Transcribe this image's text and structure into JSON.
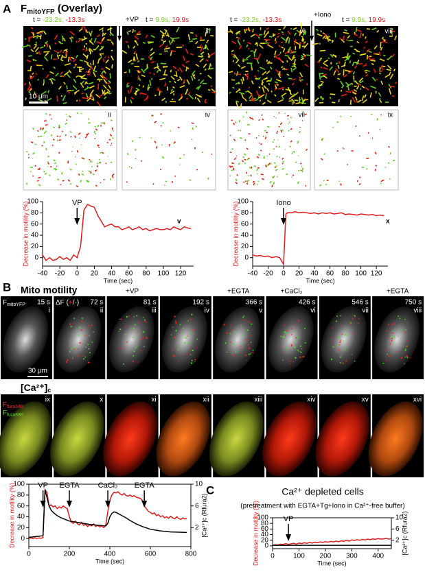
{
  "figure": {
    "panel_a": {
      "label": "A",
      "title": [
        "F",
        "mitoYFP",
        " (Overlay)"
      ],
      "time_labels": [
        [
          "t = ",
          "-23.2s, ",
          "-13.3s"
        ],
        [
          "t = ",
          "9.9s, ",
          "19.9s"
        ],
        [
          "t = ",
          "-23.2s, ",
          "-13.3s"
        ],
        [
          "t = ",
          "9.9s, ",
          "19.9s"
        ]
      ],
      "treatments": [
        "+VP",
        "+Iono"
      ],
      "image_labels": [
        "i",
        "iii",
        "vi",
        "viii",
        "ii",
        "iv",
        "vii",
        "ix"
      ],
      "scale": "10 μm",
      "chart_labels": [
        "v",
        "x"
      ]
    },
    "panel_b": {
      "label": "B",
      "title": "Mito motility",
      "treatments": [
        "+VP",
        "+EGTA",
        "+CaCl₂",
        "+EGTA"
      ],
      "first_image": [
        "F",
        "mitoYFP"
      ],
      "second_image": [
        "ΔF (",
        "+",
        "/",
        "-",
        ")"
      ],
      "times": [
        "15 s",
        "72 s",
        "81 s",
        "192 s",
        "366 s",
        "426 s",
        "546 s",
        "750 s"
      ],
      "labels": [
        "i",
        "ii",
        "iii",
        "iv",
        "v",
        "vi",
        "vii",
        "viii"
      ],
      "scale": "30 μm",
      "ca_title": [
        "[Ca²⁺]",
        "c"
      ],
      "fura": [
        "F",
        "fura340",
        "F",
        "fura380"
      ],
      "labels2": [
        "ix",
        "x",
        "xi",
        "xii",
        "xiii",
        "xiv",
        "xv",
        "xvi"
      ]
    },
    "panel_c": {
      "label": "C"
    }
  },
  "chart_data": [
    {
      "type": "line",
      "xlabel": "Time (sec)",
      "ylabel": "Decrease in motility (%)",
      "xlim": [
        -40,
        135
      ],
      "ylim": [
        -15,
        100
      ],
      "xticks": [
        -40,
        -20,
        0,
        20,
        40,
        60,
        80,
        100,
        120
      ],
      "yticks": [
        0,
        20,
        40,
        60,
        80,
        100
      ],
      "annotations": [
        {
          "text": "VP",
          "x": 0
        }
      ],
      "series": [
        {
          "color": "#e31a1c",
          "x": [
            -40,
            -36,
            -32,
            -28,
            -24,
            -20,
            -16,
            -12,
            -8,
            -4,
            0,
            4,
            8,
            12,
            16,
            20,
            24,
            28,
            32,
            36,
            40,
            44,
            48,
            52,
            56,
            60,
            64,
            68,
            72,
            76,
            80,
            84,
            88,
            92,
            96,
            100,
            104,
            108,
            112,
            116,
            120,
            124,
            128,
            132
          ],
          "values": [
            5,
            -5,
            0,
            -5,
            -3,
            2,
            -3,
            0,
            -5,
            5,
            0,
            20,
            85,
            95,
            92,
            90,
            75,
            65,
            55,
            58,
            60,
            55,
            55,
            50,
            52,
            55,
            50,
            52,
            55,
            50,
            52,
            48,
            50,
            52,
            50,
            50,
            52,
            50,
            55,
            52,
            50,
            55,
            53,
            52
          ]
        }
      ]
    },
    {
      "type": "line",
      "xlabel": "Time (sec)",
      "ylabel": "Decrease in motility (%)",
      "xlim": [
        -40,
        135
      ],
      "ylim": [
        -15,
        100
      ],
      "xticks": [
        -40,
        -20,
        0,
        20,
        40,
        60,
        80,
        100,
        120
      ],
      "yticks": [
        0,
        20,
        40,
        60,
        80,
        100
      ],
      "annotations": [
        {
          "text": "Iono",
          "x": 0
        }
      ],
      "series": [
        {
          "color": "#e31a1c",
          "x": [
            -40,
            -35,
            -30,
            -25,
            -20,
            -15,
            -10,
            -5,
            0,
            3,
            5,
            10,
            15,
            20,
            25,
            30,
            35,
            40,
            45,
            50,
            55,
            60,
            65,
            70,
            75,
            80,
            85,
            90,
            95,
            100,
            105,
            110,
            115,
            120,
            125,
            130
          ],
          "values": [
            5,
            3,
            4,
            2,
            3,
            0,
            2,
            0,
            -12,
            78,
            80,
            80,
            82,
            80,
            81,
            80,
            79,
            80,
            78,
            80,
            79,
            80,
            78,
            79,
            80,
            77,
            78,
            77,
            76,
            78,
            77,
            76,
            77,
            75,
            76,
            75
          ]
        }
      ]
    },
    {
      "type": "line",
      "xlabel": "Time (sec)",
      "ylabel": "Decrease in motility (%)",
      "y2label": "[Ca²⁺]c (Rfura2)",
      "xlim": [
        0,
        800
      ],
      "ylim": [
        -15,
        100
      ],
      "y2lim": [
        -1.5,
        10
      ],
      "xticks": [
        0,
        200,
        400,
        600,
        800
      ],
      "yticks": [
        0,
        20,
        40,
        60,
        80,
        100
      ],
      "y2ticks": [
        2,
        6,
        10
      ],
      "annotations": [
        {
          "text": "VP",
          "x": 70
        },
        {
          "text": "EGTA",
          "x": 200
        },
        {
          "text": "CaCl₂",
          "x": 390
        },
        {
          "text": "EGTA",
          "x": 570
        }
      ],
      "series": [
        {
          "color": "#e31a1c",
          "x": [
            0,
            10,
            20,
            30,
            40,
            50,
            60,
            70,
            80,
            90,
            100,
            110,
            120,
            130,
            140,
            150,
            160,
            170,
            180,
            190,
            200,
            210,
            220,
            230,
            240,
            250,
            260,
            270,
            280,
            290,
            300,
            310,
            320,
            330,
            340,
            350,
            360,
            370,
            380,
            390,
            400,
            410,
            420,
            430,
            440,
            450,
            460,
            470,
            480,
            490,
            500,
            510,
            520,
            530,
            540,
            550,
            560,
            570,
            580,
            590,
            600,
            610,
            620,
            630,
            640,
            650,
            660,
            670,
            680,
            690,
            700,
            710,
            720,
            730,
            740,
            750,
            760,
            770,
            780
          ],
          "values": [
            0,
            1,
            0,
            1,
            0,
            1,
            0,
            2,
            90,
            85,
            60,
            62,
            58,
            60,
            55,
            58,
            56,
            60,
            57,
            55,
            40,
            30,
            28,
            32,
            27,
            25,
            30,
            24,
            26,
            22,
            25,
            23,
            27,
            22,
            24,
            21,
            23,
            20,
            25,
            50,
            70,
            80,
            85,
            84,
            86,
            82,
            80,
            83,
            79,
            78,
            80,
            77,
            79,
            76,
            75,
            74,
            70,
            60,
            55,
            50,
            48,
            45,
            47,
            42,
            44,
            40,
            42,
            38,
            40,
            37,
            41,
            38,
            36,
            40,
            37,
            35,
            38,
            36,
            37
          ]
        },
        {
          "color": "#000000",
          "axis": "y2",
          "x": [
            0,
            70,
            80,
            90,
            100,
            110,
            120,
            140,
            160,
            180,
            200,
            250,
            300,
            350,
            380,
            390,
            400,
            410,
            420,
            430,
            440,
            460,
            480,
            500,
            530,
            560,
            600,
            650,
            700,
            780
          ],
          "values": [
            0.2,
            0.5,
            9,
            7.5,
            6,
            5.2,
            4.8,
            4.2,
            3.8,
            3.5,
            3.2,
            2.9,
            2.6,
            2.4,
            2.3,
            2.8,
            4,
            4.6,
            4.9,
            4.8,
            4.6,
            4.2,
            3.8,
            3.3,
            2.7,
            2.2,
            1.7,
            1.4,
            1.2,
            1.1
          ]
        }
      ]
    },
    {
      "type": "line",
      "title": "Ca²⁺ depleted cells",
      "subtitle": "(pretreatment with EGTA+Tg+Iono in Ca²⁺-free buffer)",
      "xlabel": "Time (sec)",
      "ylabel": "Decrease in motility (%)",
      "y2label": "[Ca²⁺]c (Rfura2)",
      "xlim": [
        0,
        450
      ],
      "ylim": [
        -10,
        100
      ],
      "y2lim": [
        -1,
        10
      ],
      "xticks": [
        0,
        100,
        200,
        300,
        400
      ],
      "yticks": [
        0,
        20,
        40,
        60,
        80,
        100
      ],
      "y2ticks": [
        2,
        6,
        10
      ],
      "annotations": [
        {
          "text": "VP",
          "x": 60
        }
      ],
      "series": [
        {
          "color": "#e31a1c",
          "x": [
            0,
            10,
            20,
            30,
            40,
            50,
            60,
            70,
            80,
            90,
            100,
            110,
            120,
            130,
            140,
            150,
            160,
            170,
            180,
            190,
            200,
            210,
            220,
            230,
            240,
            250,
            260,
            270,
            280,
            290,
            300,
            310,
            320,
            330,
            340,
            350,
            360,
            370,
            380,
            390,
            400,
            410,
            420,
            430,
            440,
            450
          ],
          "values": [
            2,
            4,
            3,
            6,
            5,
            8,
            5,
            7,
            9,
            6,
            10,
            8,
            11,
            9,
            12,
            10,
            13,
            11,
            14,
            12,
            15,
            13,
            16,
            14,
            17,
            15,
            18,
            16,
            20,
            17,
            21,
            19,
            22,
            20,
            23,
            21,
            24,
            22,
            25,
            23,
            26,
            24,
            25,
            27,
            24,
            26
          ]
        },
        {
          "color": "#000000",
          "axis": "y2",
          "x": [
            0,
            450
          ],
          "values": [
            0.2,
            0.2
          ]
        }
      ]
    }
  ]
}
